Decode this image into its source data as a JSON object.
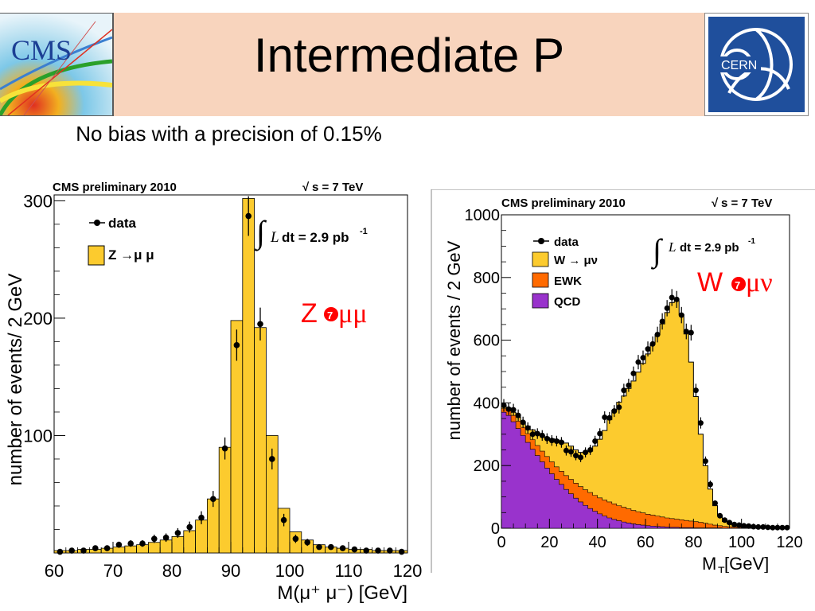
{
  "header": {
    "title": "Intermediate P",
    "left_logo_text": "CMS",
    "right_logo_text": "CERN"
  },
  "subtitle": "No bias with a precision of 0.15%",
  "colors": {
    "header_band": "#f8d4bd",
    "signal_fill": "#fccb2e",
    "ewk_fill": "#ff6a00",
    "qcd_fill": "#9933cc",
    "annotation_red": "#ff0000",
    "cern_blue": "#1f4f9c"
  },
  "chart_data": [
    {
      "type": "bar",
      "name": "z-mumu-mass",
      "header_left": "CMS preliminary 2010",
      "header_right": "s = 7 TeV",
      "sqrt_prefix": "√",
      "xlabel": "M(μ⁺ μ⁻) [GeV]",
      "ylabel": "number of events/ 2 GeV",
      "xlim": [
        60,
        120
      ],
      "ylim": [
        0,
        305
      ],
      "xticks": [
        60,
        70,
        80,
        90,
        100,
        110,
        120
      ],
      "xtick_labels": [
        "60",
        "70",
        "80",
        "90",
        "100",
        "110",
        "120"
      ],
      "yticks": [
        100,
        200,
        300
      ],
      "ytick_labels": [
        "100",
        "200",
        "300"
      ],
      "legend": [
        {
          "marker": "point",
          "label": "data"
        },
        {
          "marker": "fill",
          "color": "#fccb2e",
          "label": "Z →μ μ"
        }
      ],
      "lumi_label": "L dt = 2.9 pb",
      "lumi_sup": "-1",
      "annotation": "Z→μμ",
      "annotation_prefix": "Z",
      "annotation_suffix": "μμ",
      "bin_edges": [
        60,
        62,
        64,
        66,
        68,
        70,
        72,
        74,
        76,
        78,
        80,
        82,
        84,
        86,
        88,
        90,
        92,
        94,
        96,
        98,
        100,
        102,
        104,
        106,
        108,
        110,
        112,
        114,
        116,
        118,
        120
      ],
      "mc": [
        2,
        2,
        3,
        3,
        4,
        5,
        6,
        7,
        9,
        11,
        14,
        19,
        28,
        46,
        90,
        198,
        302,
        192,
        100,
        38,
        18,
        11,
        7,
        5,
        4,
        3,
        3,
        2,
        2,
        2
      ],
      "data": [
        1,
        2,
        2,
        4,
        4,
        7,
        8,
        8,
        12,
        13,
        17,
        22,
        30,
        46,
        89,
        177,
        287,
        195,
        80,
        28,
        12,
        9,
        5,
        5,
        4,
        3,
        2,
        2,
        2,
        1
      ],
      "data_errors": [
        1,
        1.4,
        1.4,
        2,
        2,
        2.6,
        2.8,
        2.8,
        3.5,
        3.6,
        4.1,
        4.7,
        5.5,
        6.8,
        9.4,
        13.3,
        16.9,
        14,
        8.9,
        5.3,
        3.5,
        3,
        2.2,
        2.2,
        2,
        1.7,
        1.4,
        1.4,
        1.4,
        1
      ]
    },
    {
      "type": "area",
      "name": "w-munu-mt",
      "header_left": "CMS preliminary 2010",
      "header_right": "s = 7 TeV",
      "sqrt_prefix": "√",
      "xlabel": "M",
      "xlabel_sub": "T",
      "xlabel_suffix": " [GeV]",
      "ylabel": "number of events / 2 GeV",
      "xlim": [
        0,
        120
      ],
      "ylim": [
        0,
        1000
      ],
      "xticks": [
        0,
        20,
        40,
        60,
        80,
        100,
        120
      ],
      "xtick_labels": [
        "0",
        "20",
        "40",
        "60",
        "80",
        "100",
        "120"
      ],
      "yticks": [
        0,
        200,
        400,
        600,
        800,
        1000
      ],
      "ytick_labels": [
        "0",
        "200",
        "400",
        "600",
        "800",
        "1000"
      ],
      "legend": [
        {
          "marker": "point",
          "label": "data"
        },
        {
          "marker": "fill",
          "color": "#fccb2e",
          "label": "W → μν"
        },
        {
          "marker": "fill",
          "color": "#ff6a00",
          "label": "EWK"
        },
        {
          "marker": "fill",
          "color": "#9933cc",
          "label": "QCD"
        }
      ],
      "lumi_label": "L dt = 2.9 pb",
      "lumi_sup": "-1",
      "annotation": "W→μν",
      "annotation_prefix": "W",
      "annotation_suffix": "μν",
      "bin_edges": [
        0,
        2,
        4,
        6,
        8,
        10,
        12,
        14,
        16,
        18,
        20,
        22,
        24,
        26,
        28,
        30,
        32,
        34,
        36,
        38,
        40,
        42,
        44,
        46,
        48,
        50,
        52,
        54,
        56,
        58,
        60,
        62,
        64,
        66,
        68,
        70,
        72,
        74,
        76,
        78,
        80,
        82,
        84,
        86,
        88,
        90,
        92,
        94,
        96,
        98,
        100,
        102,
        104,
        106,
        108,
        110,
        112,
        114,
        116,
        118,
        120
      ],
      "qcd": [
        370,
        360,
        340,
        318,
        296,
        274,
        252,
        232,
        212,
        192,
        174,
        156,
        140,
        124,
        110,
        96,
        84,
        73,
        63,
        54,
        46,
        39,
        33,
        28,
        24,
        20,
        17,
        14,
        12,
        10,
        8,
        7,
        6,
        5,
        4,
        3,
        3,
        2,
        2,
        2,
        1,
        1,
        1,
        1,
        1,
        1,
        0,
        0,
        0,
        0,
        0,
        0,
        0,
        0,
        0,
        0,
        0,
        0,
        0,
        0
      ],
      "ewk": [
        382,
        375,
        360,
        342,
        322,
        302,
        283,
        264,
        246,
        229,
        212,
        196,
        182,
        168,
        156,
        144,
        133,
        123,
        114,
        105,
        97,
        90,
        84,
        78,
        72,
        67,
        62,
        57,
        53,
        49,
        45,
        42,
        39,
        36,
        33,
        31,
        29,
        27,
        25,
        23,
        21,
        19,
        16,
        13,
        10,
        8,
        6,
        5,
        4,
        3,
        2,
        2,
        1,
        1,
        1,
        1,
        1,
        1,
        0,
        0
      ],
      "total": [
        392,
        384,
        370,
        355,
        340,
        326,
        314,
        304,
        296,
        290,
        286,
        282,
        278,
        272,
        262,
        250,
        242,
        240,
        246,
        262,
        284,
        312,
        346,
        376,
        402,
        422,
        446,
        470,
        498,
        526,
        556,
        588,
        618,
        652,
        688,
        720,
        726,
        682,
        620,
        530,
        420,
        300,
        200,
        125,
        72,
        40,
        22,
        14,
        10,
        8,
        6,
        5,
        4,
        3,
        3,
        2,
        2,
        2,
        1,
        1
      ],
      "data": [
        392,
        380,
        378,
        360,
        338,
        320,
        300,
        302,
        296,
        286,
        280,
        278,
        274,
        248,
        244,
        232,
        226,
        242,
        250,
        278,
        302,
        354,
        352,
        374,
        386,
        440,
        456,
        494,
        530,
        544,
        572,
        588,
        618,
        660,
        702,
        736,
        730,
        680,
        628,
        624,
        440,
        336,
        214,
        140,
        80,
        40,
        26,
        18,
        12,
        10,
        8,
        7,
        5,
        4,
        4,
        3,
        2,
        2,
        2,
        2
      ],
      "data_errors": [
        20,
        19,
        19,
        19,
        18,
        18,
        17,
        17,
        17,
        17,
        17,
        17,
        17,
        16,
        16,
        15,
        15,
        16,
        16,
        17,
        17,
        19,
        19,
        19,
        20,
        21,
        21,
        22,
        23,
        23,
        24,
        24,
        25,
        26,
        26,
        27,
        27,
        26,
        25,
        25,
        21,
        18,
        15,
        12,
        9,
        6,
        5,
        4,
        3,
        3,
        3,
        3,
        2,
        2,
        2,
        2,
        1,
        1,
        1,
        1
      ]
    }
  ]
}
